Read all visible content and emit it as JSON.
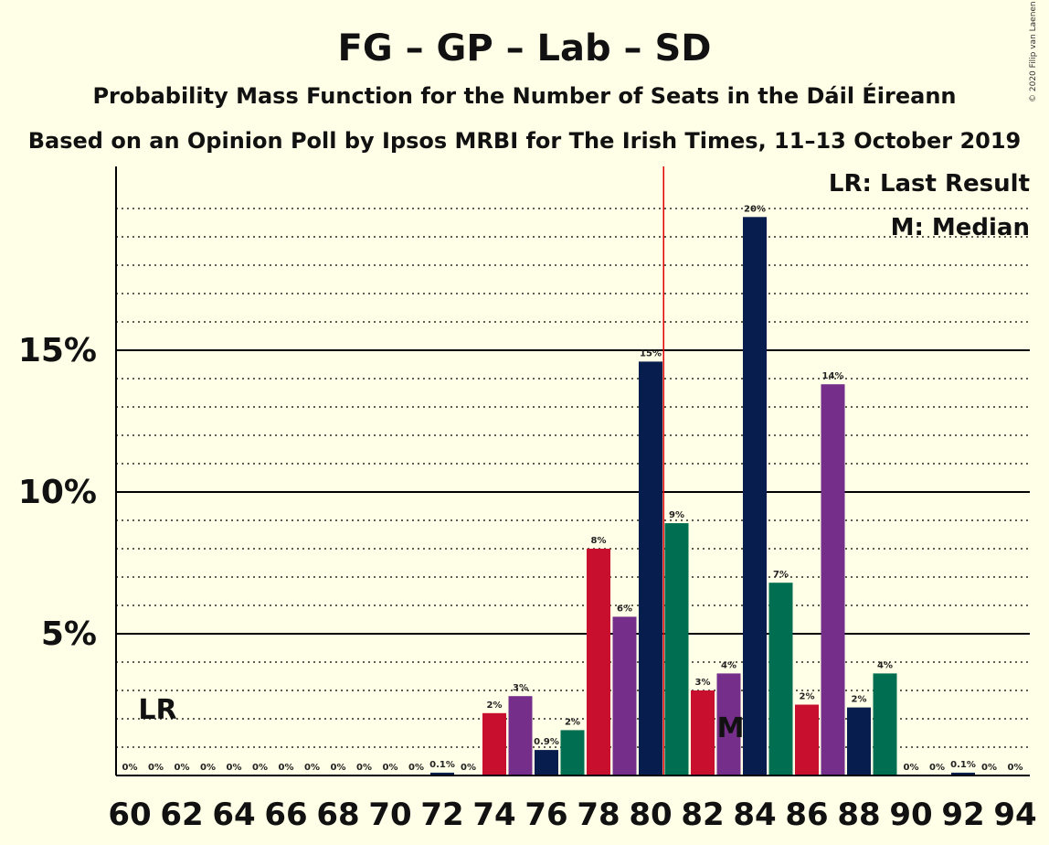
{
  "title": "FG – GP – Lab – SD",
  "subtitle1": "Probability Mass Function for the Number of Seats in the Dáil Éireann",
  "subtitle2": "Based on an Opinion Poll by Ipsos MRBI for The Irish Times, 11–13 October 2019",
  "copyright": "© 2020 Filip van Laenen",
  "legend": {
    "lr": "LR: Last Result",
    "median": "M: Median"
  },
  "markers": {
    "lr_label": "LR",
    "median_label": "M"
  },
  "colors": {
    "background": "#FFFEE6",
    "FG": "#071D4E",
    "GP": "#006E51",
    "Lab": "#C8102E",
    "SD": "#752F8A",
    "last_result_line": "#E00000"
  },
  "chart_data": {
    "type": "bar",
    "x": [
      60,
      61,
      62,
      63,
      64,
      65,
      66,
      67,
      68,
      69,
      70,
      71,
      72,
      73,
      74,
      75,
      76,
      77,
      78,
      79,
      80,
      81,
      82,
      83,
      84,
      85,
      86,
      87,
      88,
      89,
      90,
      91,
      92,
      93,
      94
    ],
    "values": [
      0,
      0,
      0,
      0,
      0,
      0,
      0,
      0,
      0,
      0,
      0,
      0,
      0.1,
      0,
      2.2,
      2.8,
      0.9,
      1.6,
      8.0,
      5.6,
      14.6,
      8.9,
      3.0,
      3.6,
      19.7,
      6.8,
      2.5,
      13.8,
      2.4,
      3.6,
      0,
      0,
      0.1,
      0,
      0
    ],
    "data_labels": [
      "0%",
      "0%",
      "0%",
      "0%",
      "0%",
      "0%",
      "0%",
      "0%",
      "0%",
      "0%",
      "0%",
      "0%",
      "0.1%",
      "0%",
      "2%",
      "3%",
      "0.9%",
      "2%",
      "8%",
      "6%",
      "15%",
      "9%",
      "3%",
      "4%",
      "20%",
      "7%",
      "2%",
      "14%",
      "2%",
      "4%",
      "0%",
      "0%",
      "0.1%",
      "0%",
      "0%"
    ],
    "bar_colors": [
      "FG",
      "GP",
      "Lab",
      "SD",
      "FG",
      "GP",
      "Lab",
      "SD",
      "FG",
      "GP",
      "FG",
      "GP",
      "FG",
      "SD",
      "Lab",
      "SD",
      "FG",
      "GP",
      "Lab",
      "SD",
      "FG",
      "GP",
      "Lab",
      "SD",
      "FG",
      "GP",
      "Lab",
      "SD",
      "FG",
      "GP",
      "Lab",
      "SD",
      "FG",
      "GP",
      "Lab"
    ],
    "x_ticks": [
      60,
      62,
      64,
      66,
      68,
      70,
      72,
      74,
      76,
      78,
      80,
      82,
      84,
      86,
      88,
      90,
      92,
      94
    ],
    "y_ticks": [
      5,
      10,
      15
    ],
    "y_tick_labels": [
      "5%",
      "10%",
      "15%"
    ],
    "ylim": [
      0,
      21.5
    ],
    "last_result": 80.5,
    "median": 83,
    "lr_label_position": 61
  }
}
